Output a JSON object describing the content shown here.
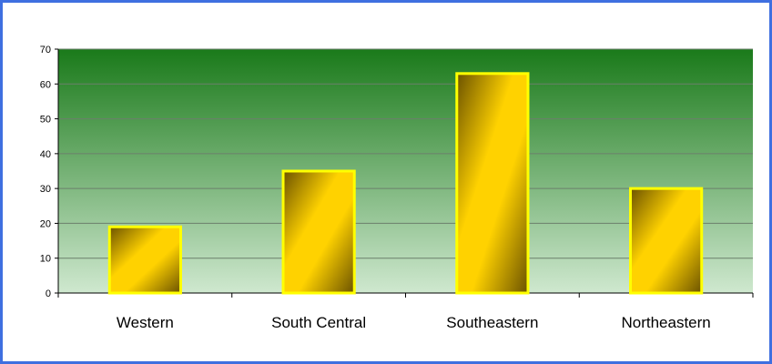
{
  "chart_data": {
    "type": "bar",
    "title": "",
    "xlabel": "",
    "ylabel": "",
    "categories": [
      "Western",
      "South Central",
      "Southeastern",
      "Northeastern"
    ],
    "values": [
      19,
      35,
      63,
      30
    ],
    "ylim": [
      0,
      70
    ],
    "yticks": [
      0,
      10,
      20,
      30,
      40,
      50,
      60,
      70
    ],
    "grid": true,
    "legend": "none",
    "colors": {
      "plot_top": "#1a7a1a",
      "plot_bottom": "#cfe8cf",
      "bar_fill_light": "#ffd200",
      "bar_fill_dark": "#6b5200",
      "bar_border": "#ffff00",
      "frame_border": "#3f6fe0",
      "gridline": "#6b7f6b"
    }
  }
}
